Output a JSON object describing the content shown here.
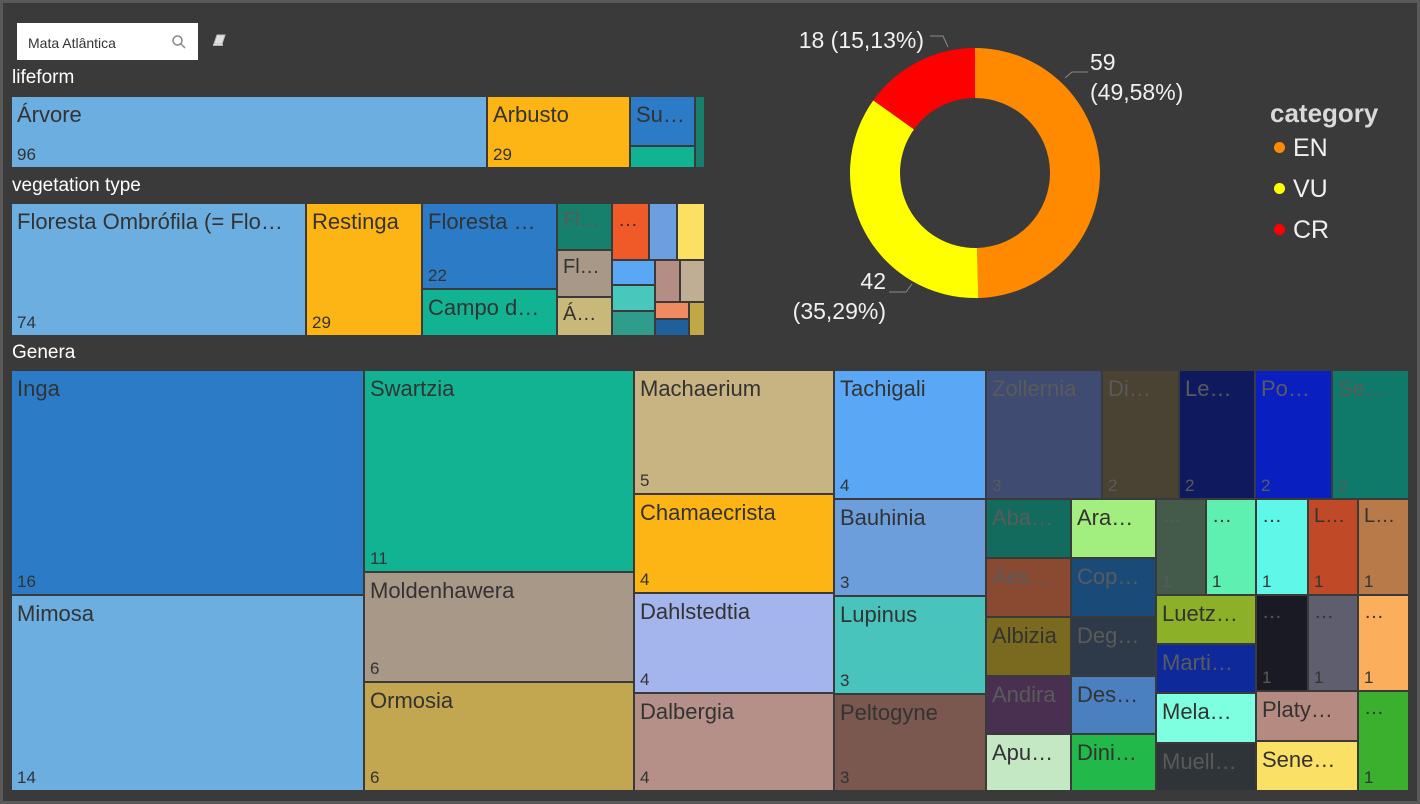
{
  "slicer": {
    "value": "Mata Atlântica",
    "search_icon": "search-icon",
    "clear_icon": "eraser-icon"
  },
  "sections": {
    "lifeform": "lifeform",
    "vegetation": "vegetation type",
    "genera": "Genera"
  },
  "chart_data": [
    {
      "type": "treemap",
      "title": "lifeform",
      "nodes": [
        {
          "name": "Árvore",
          "label": "Árvore",
          "value": 96,
          "value_label": "96",
          "color": "#6caee0"
        },
        {
          "name": "Arbusto",
          "label": "Arbusto",
          "value": 29,
          "value_label": "29",
          "color": "#fdb515"
        },
        {
          "name": "Subarbusto",
          "label": "Su…",
          "value": 10,
          "value_label": "",
          "color": "#2b7bc7"
        },
        {
          "name": "lifeform-4",
          "label": "",
          "value": 5,
          "value_label": "",
          "color": "#12b393"
        },
        {
          "name": "lifeform-5",
          "label": "",
          "value": 1,
          "value_label": "",
          "color": "#17806d"
        }
      ]
    },
    {
      "type": "treemap",
      "title": "vegetation type",
      "nodes": [
        {
          "name": "Floresta Ombrófila (= Floresta Pluvial)",
          "label": "Floresta Ombrófila (= Flo…",
          "value": 74,
          "value_label": "74",
          "color": "#6caee0"
        },
        {
          "name": "Restinga",
          "label": "Restinga",
          "value": 29,
          "value_label": "29",
          "color": "#fdb515"
        },
        {
          "name": "Floresta …",
          "label": "Floresta …",
          "value": 22,
          "value_label": "22",
          "color": "#2b7bc7"
        },
        {
          "name": "Campo d…",
          "label": "Campo d…",
          "value": 17,
          "value_label": "",
          "color": "#12b393"
        },
        {
          "name": "Fl…",
          "label": "Fl…",
          "value": 10,
          "value_label": "",
          "color": "#17806d"
        },
        {
          "name": "Fl…",
          "label": "Fl…",
          "value": 10,
          "value_label": "",
          "color": "#a89887"
        },
        {
          "name": "Á…",
          "label": "Á…",
          "value": 8,
          "value_label": "",
          "color": "#c8b87a"
        },
        {
          "name": "veg-8",
          "label": "…",
          "value": 6,
          "value_label": "",
          "color": "#f05a28"
        },
        {
          "name": "veg-9",
          "label": "",
          "value": 5,
          "value_label": "",
          "color": "#6d9ee0"
        },
        {
          "name": "veg-10",
          "label": "",
          "value": 5,
          "value_label": "",
          "color": "#fbe063"
        },
        {
          "name": "veg-11",
          "label": "",
          "value": 4,
          "value_label": "",
          "color": "#5aa8f5"
        },
        {
          "name": "veg-12",
          "label": "",
          "value": 4,
          "value_label": "",
          "color": "#b48e85"
        },
        {
          "name": "veg-13",
          "label": "",
          "value": 4,
          "value_label": "",
          "color": "#bfae94"
        },
        {
          "name": "veg-14",
          "label": "",
          "value": 4,
          "value_label": "",
          "color": "#48c7bc"
        },
        {
          "name": "veg-15",
          "label": "",
          "value": 3,
          "value_label": "",
          "color": "#f08a60"
        },
        {
          "name": "veg-16",
          "label": "",
          "value": 3,
          "value_label": "",
          "color": "#2f9c8c"
        },
        {
          "name": "veg-17",
          "label": "",
          "value": 2,
          "value_label": "",
          "color": "#1f5f9a"
        },
        {
          "name": "veg-18",
          "label": "",
          "value": 2,
          "value_label": "",
          "color": "#c2a746"
        }
      ]
    },
    {
      "type": "treemap",
      "title": "Genera",
      "nodes": [
        {
          "name": "Inga",
          "label": "Inga",
          "value": 16,
          "value_label": "16",
          "color": "#2b7bc7"
        },
        {
          "name": "Mimosa",
          "label": "Mimosa",
          "value": 14,
          "value_label": "14",
          "color": "#6caee0"
        },
        {
          "name": "Swartzia",
          "label": "Swartzia",
          "value": 11,
          "value_label": "11",
          "color": "#12b393"
        },
        {
          "name": "Moldenhawera",
          "label": "Moldenhawera",
          "value": 6,
          "value_label": "6",
          "color": "#a89887"
        },
        {
          "name": "Ormosia",
          "label": "Ormosia",
          "value": 6,
          "value_label": "6",
          "color": "#c2a750"
        },
        {
          "name": "Machaerium",
          "label": "Machaerium",
          "value": 5,
          "value_label": "5",
          "color": "#c8b482"
        },
        {
          "name": "Chamaecrista",
          "label": "Chamaecrista",
          "value": 4,
          "value_label": "4",
          "color": "#fdb515"
        },
        {
          "name": "Dahlstedtia",
          "label": "Dahlstedtia",
          "value": 4,
          "value_label": "4",
          "color": "#a4b4ec"
        },
        {
          "name": "Dalbergia",
          "label": "Dalbergia",
          "value": 4,
          "value_label": "4",
          "color": "#b59088"
        },
        {
          "name": "Tachigali",
          "label": "Tachigali",
          "value": 4,
          "value_label": "4",
          "color": "#5aa8f5"
        },
        {
          "name": "Bauhinia",
          "label": "Bauhinia",
          "value": 3,
          "value_label": "3",
          "color": "#6d9edc"
        },
        {
          "name": "Lupinus",
          "label": "Lupinus",
          "value": 3,
          "value_label": "3",
          "color": "#48c4bc"
        },
        {
          "name": "Peltogyne",
          "label": "Peltogyne",
          "value": 3,
          "value_label": "3",
          "color": "#7a5850"
        },
        {
          "name": "Zollernia",
          "label": "Zollernia",
          "value": 3,
          "value_label": "3",
          "color": "#3f4b70"
        },
        {
          "name": "Di…",
          "label": "Di…",
          "value": 2,
          "value_label": "2",
          "color": "#4a4232"
        },
        {
          "name": "Le…",
          "label": "Le…",
          "value": 2,
          "value_label": "2",
          "color": "#0f1a5e"
        },
        {
          "name": "Po…",
          "label": "Po…",
          "value": 2,
          "value_label": "2",
          "color": "#0a1fc0"
        },
        {
          "name": "Se…",
          "label": "Se…",
          "value": 2,
          "value_label": "2",
          "color": "#107a6a"
        },
        {
          "name": "Aba…",
          "label": "Aba…",
          "value": 1,
          "value_label": "",
          "color": "#136b5e"
        },
        {
          "name": "Ara…",
          "label": "Ara…",
          "value": 1,
          "value_label": "",
          "color": "#a2ee7e"
        },
        {
          "name": "Aes…",
          "label": "Aes…",
          "value": 1,
          "value_label": "",
          "color": "#8a4a32"
        },
        {
          "name": "Cop…",
          "label": "Cop…",
          "value": 1,
          "value_label": "",
          "color": "#1a4b78"
        },
        {
          "name": "Albizia",
          "label": "Albizia",
          "value": 1,
          "value_label": "",
          "color": "#7a6a20"
        },
        {
          "name": "Deg…",
          "label": "Deg…",
          "value": 1,
          "value_label": "",
          "color": "#2e3a4a"
        },
        {
          "name": "Andira",
          "label": "Andira",
          "value": 1,
          "value_label": "",
          "color": "#4a3050"
        },
        {
          "name": "Des…",
          "label": "Des…",
          "value": 1,
          "value_label": "",
          "color": "#4a80c0"
        },
        {
          "name": "Apu…",
          "label": "Apu…",
          "value": 1,
          "value_label": "",
          "color": "#c4e8c4"
        },
        {
          "name": "Dini…",
          "label": "Dini…",
          "value": 1,
          "value_label": "",
          "color": "#22b84a"
        },
        {
          "name": "gen-29",
          "label": "…",
          "value": 1,
          "value_label": "1",
          "color": "#445a4a"
        },
        {
          "name": "gen-30",
          "label": "…",
          "value": 1,
          "value_label": "1",
          "color": "#5ef0b0"
        },
        {
          "name": "gen-31",
          "label": "…",
          "value": 1,
          "value_label": "1",
          "color": "#5ff8e8"
        },
        {
          "name": "L…",
          "label": "L…",
          "value": 1,
          "value_label": "1",
          "color": "#c04a28"
        },
        {
          "name": "L…",
          "label": "L…",
          "value": 1,
          "value_label": "1",
          "color": "#b87a48"
        },
        {
          "name": "Luetz…",
          "label": "Luetz…",
          "value": 1,
          "value_label": "",
          "color": "#8cb028"
        },
        {
          "name": "Marti…",
          "label": "Marti…",
          "value": 1,
          "value_label": "",
          "color": "#0e2a9a"
        },
        {
          "name": "Mela…",
          "label": "Mela…",
          "value": 1,
          "value_label": "",
          "color": "#7effe0"
        },
        {
          "name": "Muell…",
          "label": "Muell…",
          "value": 1,
          "value_label": "",
          "color": "#2e3438"
        },
        {
          "name": "gen-38",
          "label": "…",
          "value": 1,
          "value_label": "1",
          "color": "#1a1a24"
        },
        {
          "name": "gen-39",
          "label": "…",
          "value": 1,
          "value_label": "1",
          "color": "#5e5e6e"
        },
        {
          "name": "gen-40",
          "label": "…",
          "value": 1,
          "value_label": "1",
          "color": "#fbae5c"
        },
        {
          "name": "Platy…",
          "label": "Platy…",
          "value": 1,
          "value_label": "",
          "color": "#b58a80"
        },
        {
          "name": "Sene…",
          "label": "Sene…",
          "value": 1,
          "value_label": "",
          "color": "#fbe066"
        },
        {
          "name": "gen-43",
          "label": "…",
          "value": 1,
          "value_label": "1",
          "color": "#3ab02e"
        }
      ]
    },
    {
      "type": "pie",
      "variant": "donut",
      "legend_title": "category",
      "legend_position": "right",
      "slices": [
        {
          "name": "EN",
          "value": 59,
          "percent": "49,58%",
          "label_line1": "59",
          "label_line2": "(49,58%)",
          "color": "#ff8a00"
        },
        {
          "name": "VU",
          "value": 42,
          "percent": "35,29%",
          "label_line1": "42",
          "label_line2": "(35,29%)",
          "color": "#ffff00"
        },
        {
          "name": "CR",
          "value": 18,
          "percent": "15,13%",
          "label_line1": "18 (15,13%)",
          "label_line2": "",
          "color": "#ff0000"
        }
      ]
    }
  ]
}
